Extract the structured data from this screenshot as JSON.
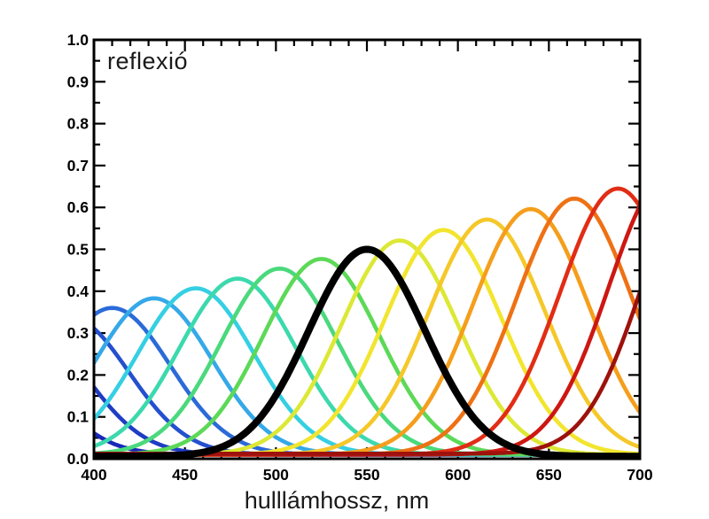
{
  "figure": {
    "title": "reflexió",
    "xlabel": "hulllámhossz, nm"
  },
  "chart_data": {
    "type": "line",
    "title": "reflexió",
    "xlabel": "hulllámhossz, nm",
    "ylabel": "",
    "xlim": [
      400,
      700
    ],
    "ylim": [
      0,
      1.0
    ],
    "x_major_tick_step": 50,
    "x_minor_tick_step": 10,
    "y_major_tick_step": 0.1,
    "y_minor_tick_step": 0.05,
    "x_tick_labels": [
      "400",
      "450",
      "500",
      "550",
      "600",
      "650",
      "700"
    ],
    "y_tick_labels": [
      "0.0",
      "0.1",
      "0.2",
      "0.3",
      "0.4",
      "0.5",
      "0.6",
      "0.7",
      "0.8",
      "0.9",
      "1.0"
    ],
    "grid": false,
    "legend_position": "none",
    "ticks_inside_all_borders": true,
    "curve_model": "y(x) = baseline + (peak - baseline) * exp(-(x - mu_nm)^2 / (2 * sigma_nm^2))",
    "sigma_nm": 32,
    "series": [
      {
        "name": "curve-341nm",
        "mu_nm": 341,
        "peak": 0.29,
        "baseline": 0.01,
        "color": "#1a28b8"
      },
      {
        "name": "curve-364nm",
        "mu_nm": 364,
        "peak": 0.313,
        "baseline": 0.01,
        "color": "#1f3cc4"
      },
      {
        "name": "curve-387nm",
        "mu_nm": 387,
        "peak": 0.337,
        "baseline": 0.01,
        "color": "#2450cf"
      },
      {
        "name": "curve-410nm",
        "mu_nm": 410,
        "peak": 0.36,
        "baseline": 0.01,
        "color": "#2b6ad9"
      },
      {
        "name": "curve-433nm",
        "mu_nm": 433,
        "peak": 0.383,
        "baseline": 0.01,
        "color": "#35a8e8"
      },
      {
        "name": "curve-456nm",
        "mu_nm": 456,
        "peak": 0.407,
        "baseline": 0.01,
        "color": "#35cfe3"
      },
      {
        "name": "curve-479nm",
        "mu_nm": 479,
        "peak": 0.43,
        "baseline": 0.01,
        "color": "#3cd9ad"
      },
      {
        "name": "curve-502nm",
        "mu_nm": 502,
        "peak": 0.454,
        "baseline": 0.01,
        "color": "#4ad97c"
      },
      {
        "name": "curve-525nm",
        "mu_nm": 525,
        "peak": 0.477,
        "baseline": 0.01,
        "color": "#5cd957"
      },
      {
        "name": "curve-568nm",
        "mu_nm": 568,
        "peak": 0.521,
        "baseline": 0.01,
        "color": "#dce834"
      },
      {
        "name": "curve-592nm",
        "mu_nm": 592,
        "peak": 0.546,
        "baseline": 0.01,
        "color": "#f2e52e"
      },
      {
        "name": "curve-616nm",
        "mu_nm": 616,
        "peak": 0.571,
        "baseline": 0.01,
        "color": "#f5c829"
      },
      {
        "name": "curve-640nm",
        "mu_nm": 640,
        "peak": 0.596,
        "baseline": 0.01,
        "color": "#f59e1c"
      },
      {
        "name": "curve-664nm",
        "mu_nm": 664,
        "peak": 0.621,
        "baseline": 0.01,
        "color": "#ee7114"
      },
      {
        "name": "curve-688nm",
        "mu_nm": 688,
        "peak": 0.645,
        "baseline": 0.01,
        "color": "#e12d15"
      },
      {
        "name": "curve-715nm",
        "mu_nm": 715,
        "peak": 0.672,
        "baseline": 0.01,
        "color": "#cd1712"
      },
      {
        "name": "curve-734nm",
        "mu_nm": 734,
        "peak": 0.69,
        "baseline": 0.012,
        "color": "#9d120c"
      }
    ],
    "highlight_series": {
      "name": "curve-550nm-black",
      "mu_nm": 550,
      "peak": 0.5,
      "baseline": 0.006,
      "color": "#000000",
      "stroke_width": 8
    },
    "series_stroke_width": 4.6,
    "peak_points": [
      [
        410,
        0.36
      ],
      [
        433,
        0.383
      ],
      [
        456,
        0.407
      ],
      [
        479,
        0.43
      ],
      [
        502,
        0.454
      ],
      [
        525,
        0.477
      ],
      [
        550,
        0.5
      ],
      [
        568,
        0.521
      ],
      [
        592,
        0.546
      ],
      [
        616,
        0.571
      ],
      [
        640,
        0.596
      ],
      [
        664,
        0.621
      ],
      [
        688,
        0.645
      ]
    ],
    "axis_color": "#000000"
  }
}
